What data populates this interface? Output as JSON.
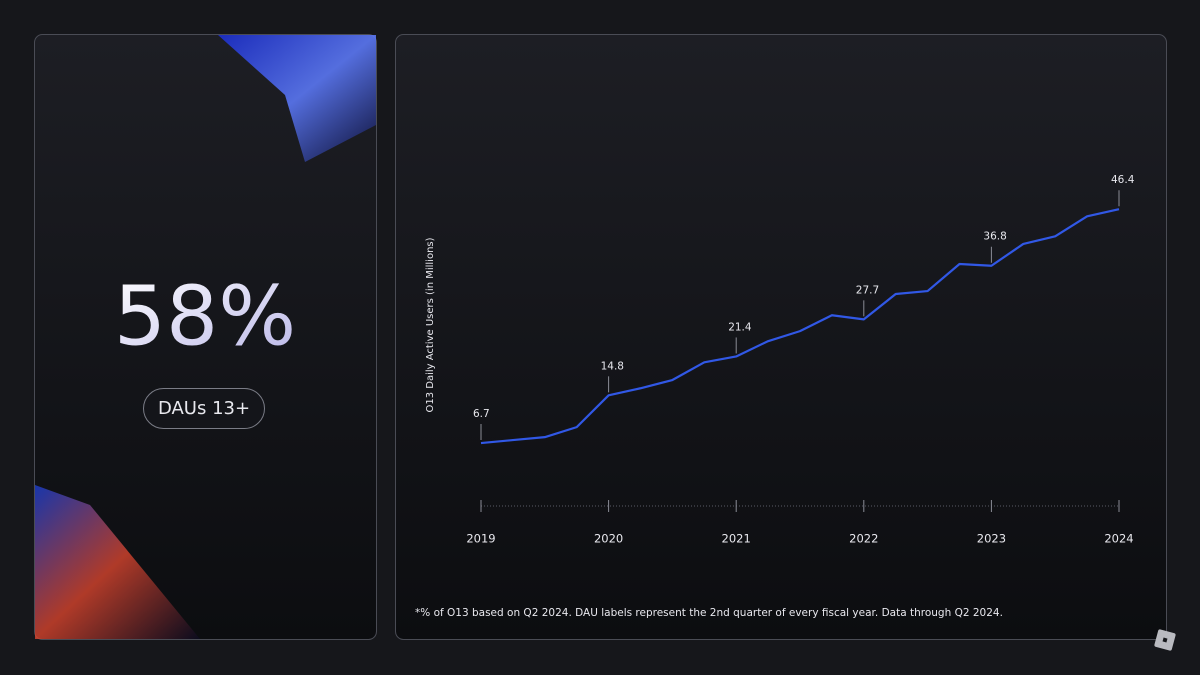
{
  "stat": {
    "value": "58%",
    "label": "DAUs 13+"
  },
  "chart_data": {
    "type": "line",
    "y_label": "O13 Daily Active Users (in Millions)",
    "categories": [
      "2019",
      null,
      null,
      null,
      "2020",
      null,
      null,
      null,
      "2021",
      null,
      null,
      null,
      "2022",
      null,
      null,
      null,
      "2023",
      null,
      null,
      null,
      "2024"
    ],
    "series": [
      {
        "name": "O13 DAUs",
        "color": "#3158e6",
        "values": [
          6.7,
          7.2,
          7.7,
          9.4,
          14.8,
          16.0,
          17.4,
          20.4,
          21.4,
          24.0,
          25.7,
          28.4,
          27.7,
          32.0,
          32.5,
          37.1,
          36.8,
          40.5,
          41.8,
          45.2,
          46.4
        ],
        "value_labels": [
          "6.7",
          null,
          null,
          null,
          "14.8",
          null,
          null,
          null,
          "21.4",
          null,
          null,
          null,
          "27.7",
          null,
          null,
          null,
          "36.8",
          null,
          null,
          null,
          "46.4"
        ]
      }
    ],
    "ylim": [
      0,
      50
    ],
    "grid": false
  },
  "footnote": "*% of O13 based on Q2 2024. DAU labels represent the 2nd quarter of every fiscal year. Data through Q2 2024."
}
